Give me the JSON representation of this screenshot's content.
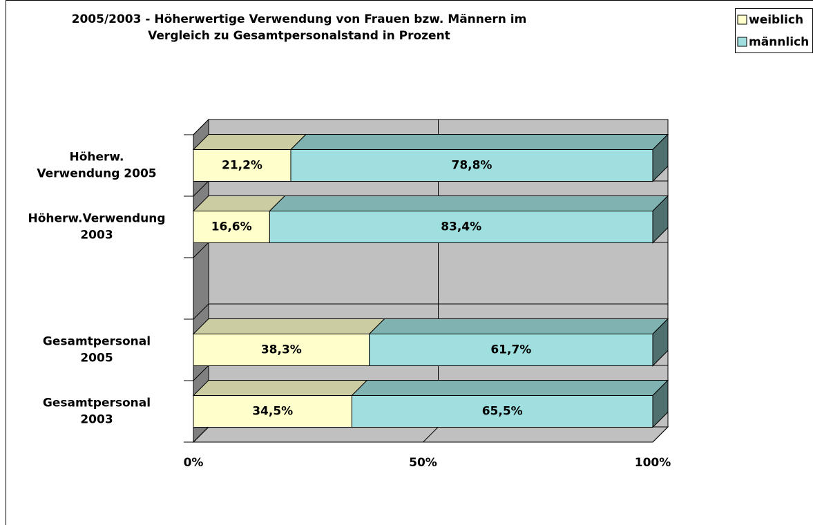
{
  "chart_data": {
    "type": "bar3d_stacked_horizontal",
    "title": "2005/2003 - Höherwertige Verwendung von Frauen bzw. Männern im\nVergleich zu Gesamtpersonalstand in Prozent",
    "categories": [
      "Höherw.\nVerwendung 2005",
      "Höherw.Verwendung\n2003",
      null,
      "Gesamtpersonal\n2005",
      "Gesamtpersonal\n2003"
    ],
    "series": [
      {
        "name": "weiblich",
        "color": "#ffffcc",
        "values": [
          21.2,
          16.6,
          null,
          38.3,
          34.5
        ],
        "value_labels": [
          "21,2%",
          "16,6%",
          null,
          "38,3%",
          "34,5%"
        ]
      },
      {
        "name": "männlich",
        "color": "#a0dfdf",
        "values": [
          78.8,
          83.4,
          null,
          61.7,
          65.5
        ],
        "value_labels": [
          "78,8%",
          "83,4%",
          null,
          "61,7%",
          "65,5%"
        ]
      }
    ],
    "xlim": [
      0,
      100
    ],
    "xticks": [
      {
        "value": 0,
        "label": "0%"
      },
      {
        "value": 50,
        "label": "50%"
      },
      {
        "value": 100,
        "label": "100%"
      }
    ],
    "grid": true,
    "legend": "top-right"
  }
}
